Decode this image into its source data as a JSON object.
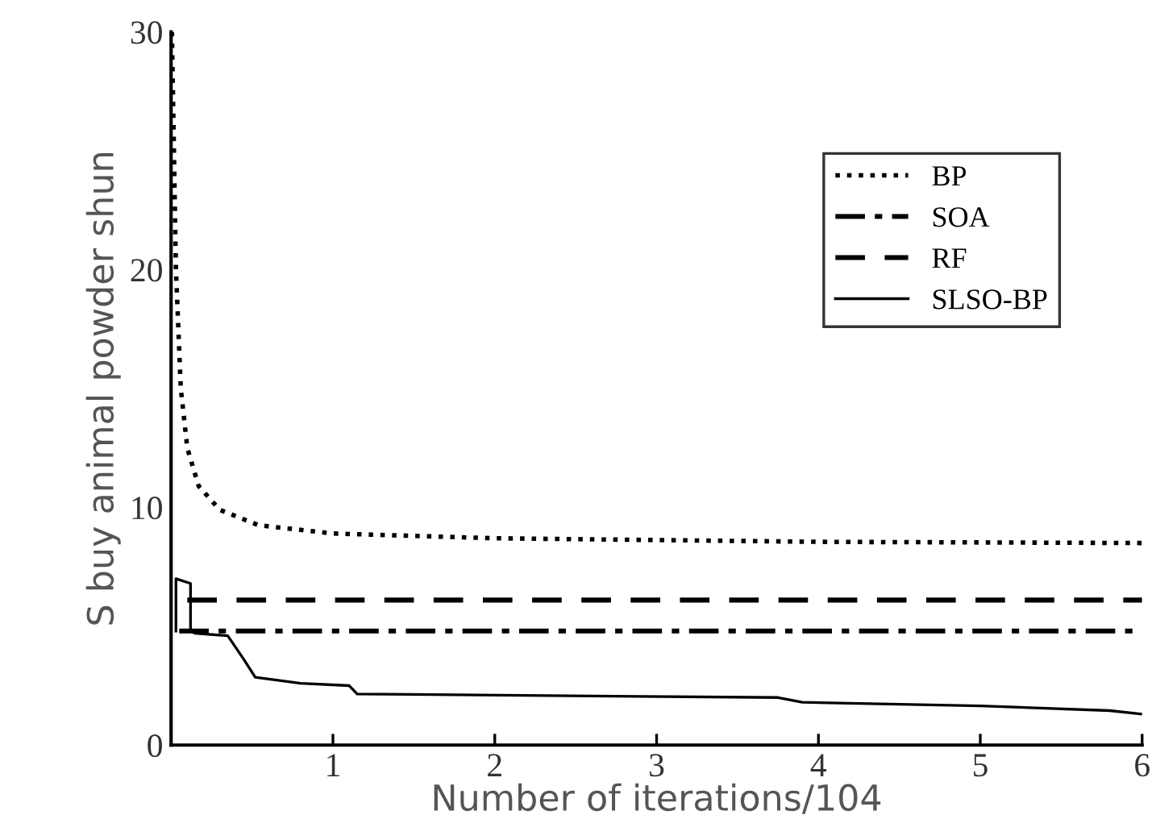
{
  "chart_data": {
    "type": "line",
    "xlabel": "Number of iterations/104",
    "ylabel": "S buy animal powder shun",
    "xlim": [
      0,
      6
    ],
    "ylim": [
      0,
      30
    ],
    "xticks": [
      1,
      2,
      3,
      4,
      5,
      6
    ],
    "yticks": [
      0,
      10,
      20,
      30
    ],
    "grid": false,
    "legend": "top right",
    "marker": "none",
    "series": [
      {
        "name": "BP",
        "color": "#000000",
        "line_style": "dotted",
        "x": [
          0.005,
          0.02,
          0.03,
          0.06,
          0.1,
          0.17,
          0.3,
          0.54,
          1,
          2,
          4,
          6
        ],
        "values": [
          30,
          24,
          20,
          15,
          12.5,
          10.9,
          9.9,
          9.25,
          8.9,
          8.7,
          8.55,
          8.5
        ]
      },
      {
        "name": "SOA",
        "color": "#000000",
        "line_style": "dashdot",
        "x": [
          0.05,
          6
        ],
        "values": [
          4.8,
          4.8
        ]
      },
      {
        "name": "RF",
        "color": "#000000",
        "line_style": "dashed",
        "x": [
          0.1,
          6
        ],
        "values": [
          6.1,
          6.1
        ]
      },
      {
        "name": "SLSO-BP",
        "color": "#000000",
        "line_style": "solid",
        "x": [
          0.03,
          0.03,
          0.12,
          0.12,
          0.15,
          0.35,
          0.45,
          0.52,
          0.8,
          1.1,
          1.15,
          3.75,
          3.9,
          5,
          5.8,
          6
        ],
        "values": [
          4.8,
          7.0,
          6.8,
          4.8,
          4.7,
          4.6,
          3.6,
          2.85,
          2.6,
          2.5,
          2.15,
          2.0,
          1.8,
          1.65,
          1.45,
          1.3
        ]
      }
    ]
  }
}
